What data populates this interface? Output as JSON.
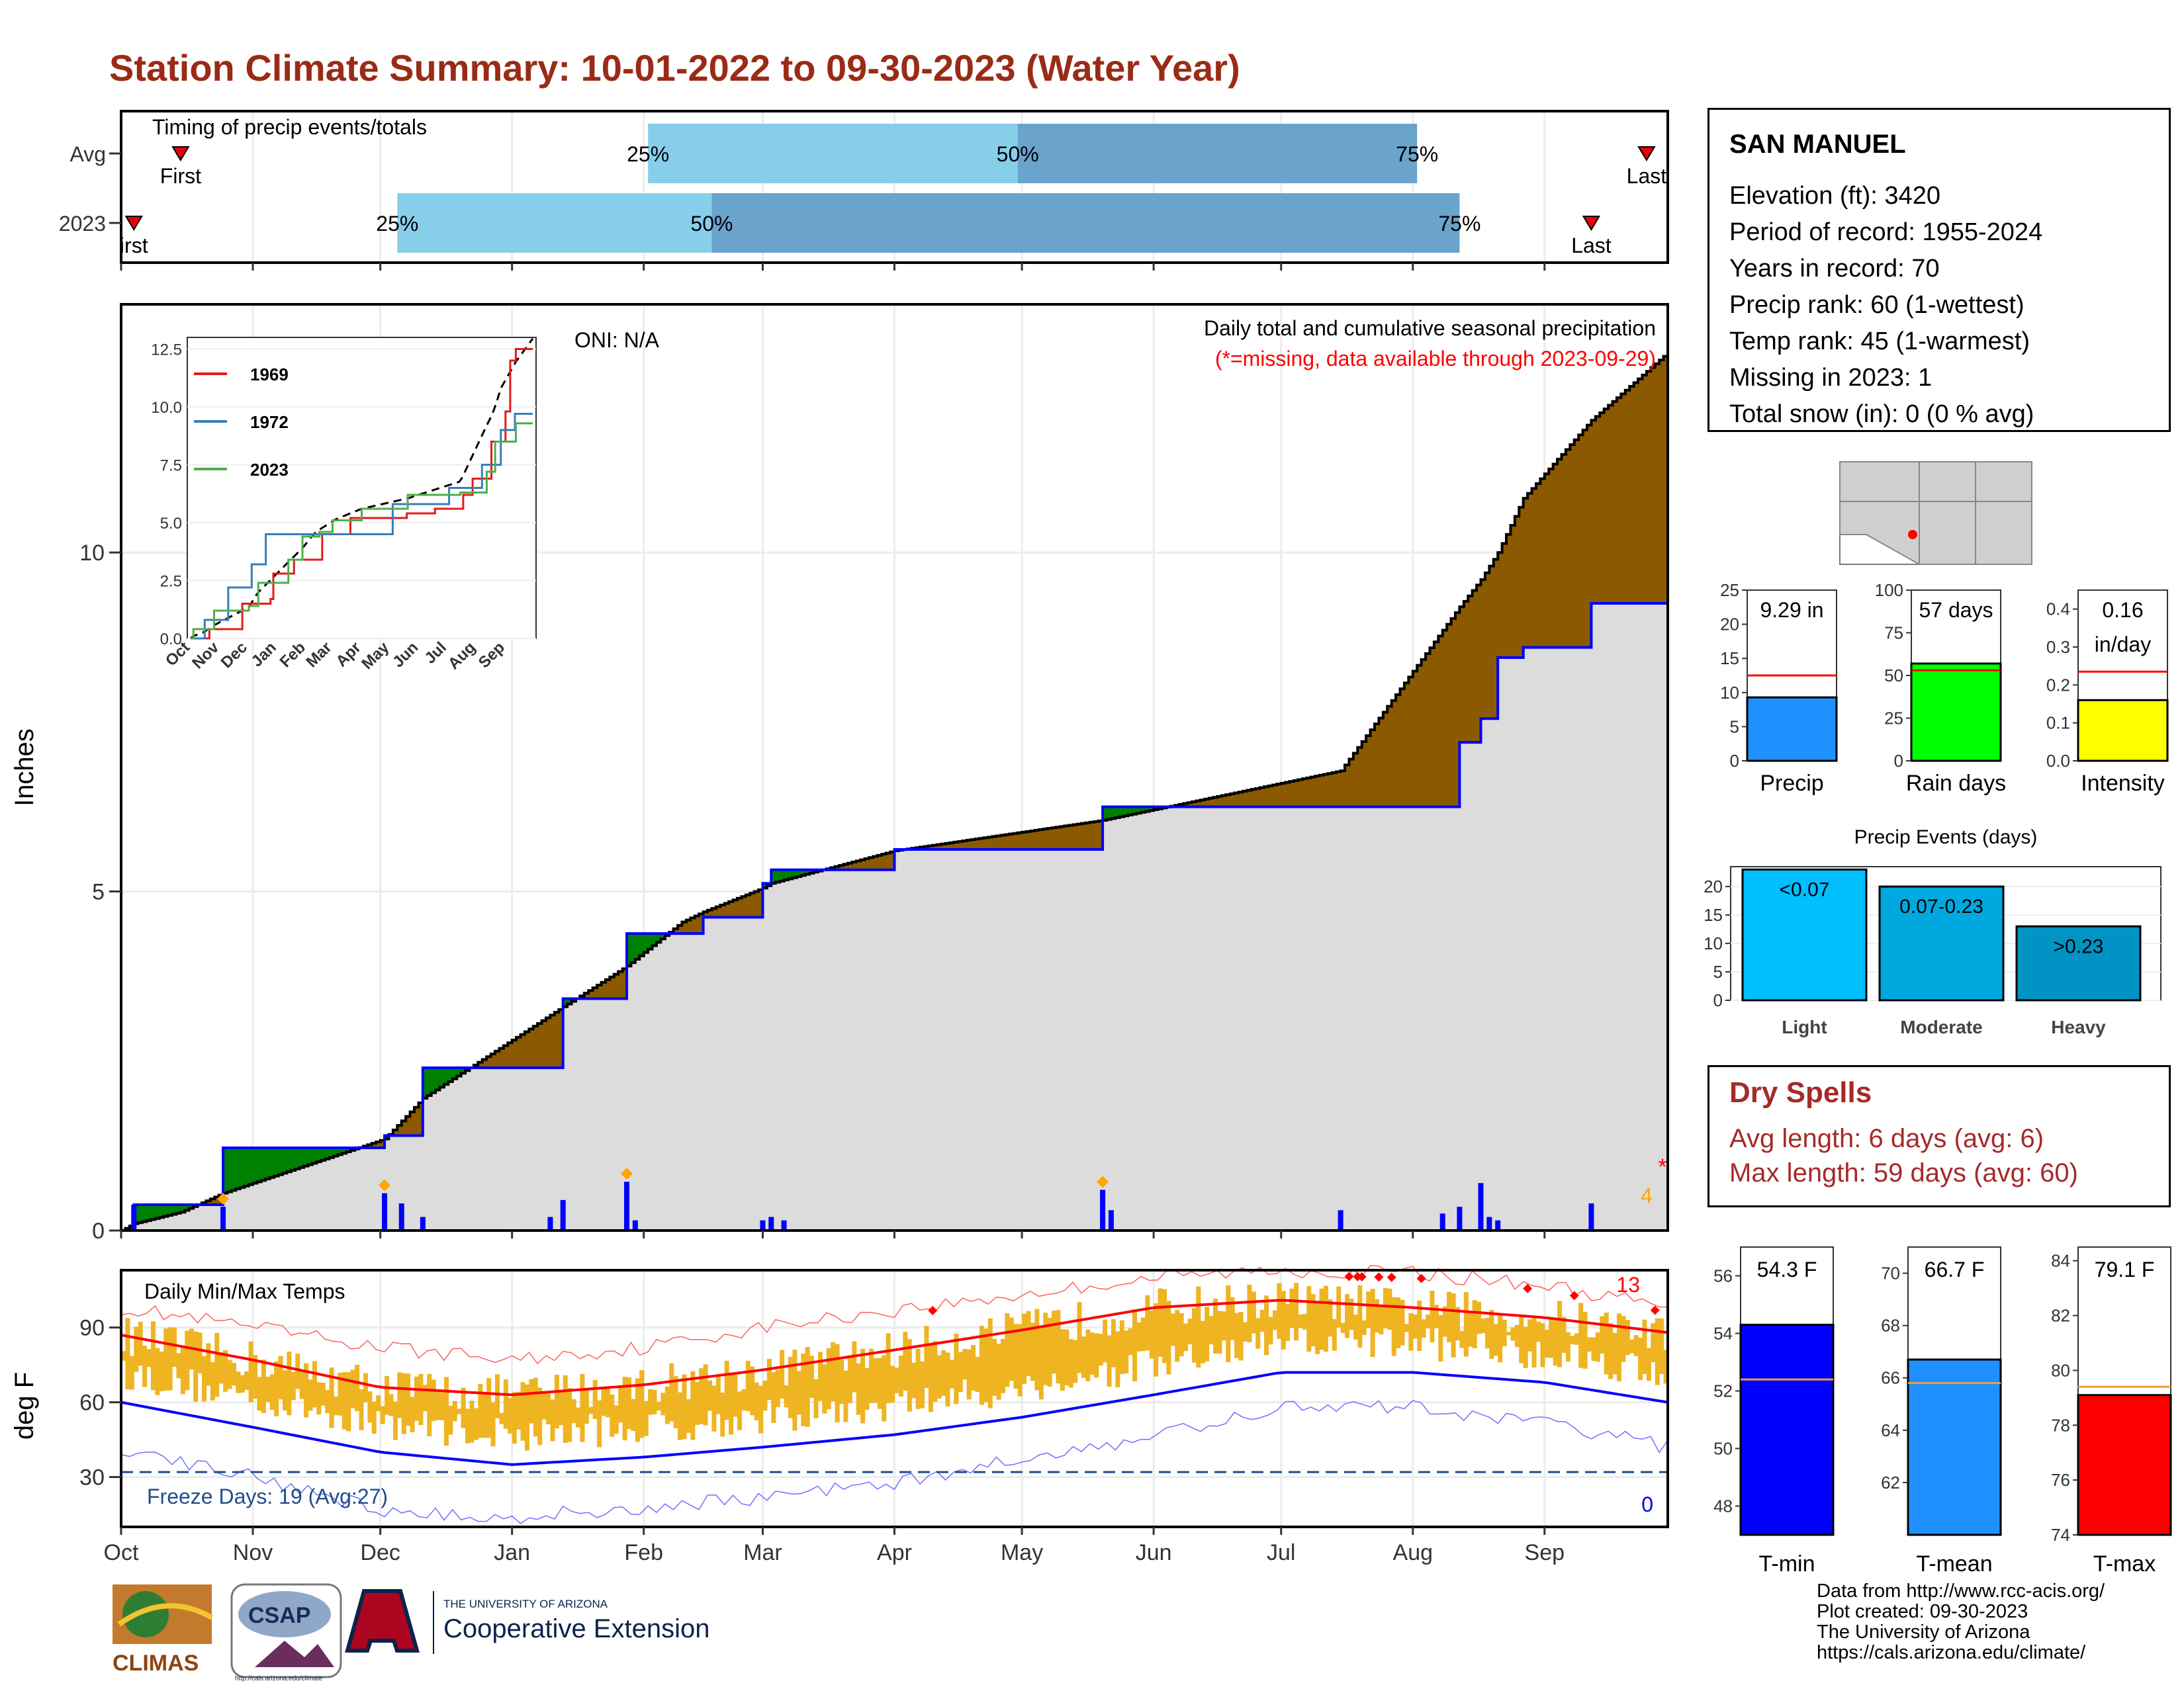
{
  "title": "Station Climate Summary: 10-01-2022 to 09-30-2023 (Water Year)",
  "months": [
    "Oct",
    "Nov",
    "Dec",
    "Jan",
    "Feb",
    "Mar",
    "Apr",
    "May",
    "Jun",
    "Jul",
    "Aug",
    "Sep"
  ],
  "timing": {
    "title": "Timing of precip events/totals",
    "rows": [
      "Avg",
      "2023"
    ],
    "first_label": "First",
    "first_label_2023": "irst",
    "last_label": "Last",
    "pct_labels": [
      "25%",
      "50%",
      "75%"
    ],
    "colors": {
      "light": "#87ceeb",
      "dark": "#6aa3cc",
      "marker": "#e8000b"
    }
  },
  "precip": {
    "ylabel": "Inches",
    "yticks": [
      "0",
      "5",
      "10"
    ],
    "oni_label": "ONI: N/A",
    "caption": "Daily total and cumulative seasonal precipitation",
    "missing_note": "(*=missing, data available through 2023-09-29)",
    "missing_count": "4",
    "missing_marker": "*",
    "colors": {
      "above": "#008000",
      "below": "#8b5a00",
      "area": "#dcdcdc",
      "current": "#0000ff",
      "marker": "#ffa500"
    }
  },
  "inset": {
    "yticks": [
      "0.0",
      "2.5",
      "5.0",
      "7.5",
      "10.0",
      "12.5"
    ],
    "xticks": [
      "Oct",
      "Nov",
      "Dec",
      "Jan",
      "Feb",
      "Mar",
      "Apr",
      "May",
      "Jun",
      "Jul",
      "Aug",
      "Sep"
    ],
    "legend": [
      {
        "name": "1969",
        "color": "#e41a1c"
      },
      {
        "name": "1972",
        "color": "#377eb8"
      },
      {
        "name": "2023",
        "color": "#4daf4a"
      }
    ]
  },
  "station": {
    "name": "SAN MANUEL",
    "elevation": "Elevation (ft): 3420",
    "period": "Period of record: 1955-2024",
    "years": "Years in record: 70",
    "precip_rank": "Precip rank: 60 (1-wettest)",
    "temp_rank": "Temp rank: 45 (1-warmest)",
    "missing": "Missing in 2023: 1",
    "snow": "Total snow (in): 0 (0 % avg)"
  },
  "mini_bars": [
    {
      "label": "Precip",
      "value_text": "9.29 in",
      "value_text2": "",
      "value": 9.29,
      "avg": 12.5,
      "ymax": 25,
      "yticks": [
        "0",
        "5",
        "10",
        "15",
        "20",
        "25"
      ],
      "color": "#1e90ff"
    },
    {
      "label": "Rain days",
      "value_text": "57 days",
      "value_text2": "",
      "value": 57,
      "avg": 53,
      "ymax": 100,
      "yticks": [
        "0",
        "25",
        "50",
        "75",
        "100"
      ],
      "color": "#00ff00"
    },
    {
      "label": "Intensity",
      "value_text": "0.16",
      "value_text2": "in/day",
      "value": 0.16,
      "avg": 0.235,
      "ymax": 0.45,
      "yticks": [
        "0.0",
        "0.1",
        "0.2",
        "0.3",
        "0.4"
      ],
      "color": "#ffff00"
    }
  ],
  "events": {
    "title": "Precip Events (days)",
    "yticks": [
      "0",
      "5",
      "10",
      "15",
      "20"
    ],
    "bars": [
      {
        "label": "Light",
        "text": "<0.07",
        "value": 23,
        "color": "#00bfff"
      },
      {
        "label": "Moderate",
        "text": "0.07-0.23",
        "value": 20,
        "color": "#00a8e0"
      },
      {
        "label": "Heavy",
        "text": ">0.23",
        "value": 13,
        "color": "#0093c4"
      }
    ]
  },
  "dry_spells": {
    "title": "Dry Spells",
    "avg": "Avg length: 6 days (avg: 6)",
    "max": "Max length: 59 days (avg: 60)"
  },
  "temps": {
    "ylabel": "deg F",
    "title": "Daily Min/Max Temps",
    "yticks": [
      "30",
      "60",
      "90"
    ],
    "freeze": "Freeze Days: 19 (Avg:27)",
    "hot_count": "13",
    "cold_count": "0",
    "colors": {
      "bars": "#eeb422",
      "max": "#ff0000",
      "min": "#0000ff"
    }
  },
  "temp_bars": [
    {
      "label": "T-min",
      "value_text": "54.3 F",
      "value": 54.3,
      "avg": 52.4,
      "ymin": 47,
      "ymax": 57,
      "yticks": [
        "48",
        "50",
        "52",
        "54",
        "56"
      ],
      "color": "#0000ff"
    },
    {
      "label": "T-mean",
      "value_text": "66.7 F",
      "value": 66.7,
      "avg": 65.8,
      "ymin": 60,
      "ymax": 71,
      "yticks": [
        "62",
        "64",
        "66",
        "68",
        "70"
      ],
      "color": "#1e90ff"
    },
    {
      "label": "T-max",
      "value_text": "79.1 F",
      "value": 79.1,
      "avg": 79.4,
      "ymin": 74,
      "ymax": 84.5,
      "yticks": [
        "74",
        "76",
        "78",
        "80",
        "82",
        "84"
      ],
      "color": "#ff0000"
    }
  ],
  "credits": [
    "Data from http://www.rcc-acis.org/",
    "Plot created: 09-30-2023",
    "The University of Arizona",
    "https://cals.arizona.edu/climate/"
  ],
  "logos": {
    "climas": "CLIMAS",
    "csap": "CSAP",
    "csap_url": "http://cals.arizona.edu/climate",
    "ua_small": "THE UNIVERSITY OF ARIZONA",
    "ua_big": "Cooperative Extension"
  },
  "chart_data": [
    {
      "type": "bar",
      "title": "Timing of precip events/totals",
      "categories": [
        "Avg",
        "2023"
      ],
      "series": [
        {
          "name": "25%",
          "values": [
            "2023-02-02",
            "2022-12-05"
          ]
        },
        {
          "name": "50%",
          "values": [
            "2023-04-30",
            "2023-02-17"
          ]
        },
        {
          "name": "75%",
          "values": [
            "2023-08-02",
            "2023-08-12"
          ]
        }
      ]
    },
    {
      "type": "area",
      "title": "Daily total and cumulative seasonal precipitation",
      "ylabel": "Inches",
      "ylim": [
        0,
        13
      ],
      "x": [
        "2022-10-01",
        "2022-10-04",
        "2022-10-15",
        "2022-10-25",
        "2022-12-02",
        "2022-12-11",
        "2023-01-13",
        "2023-01-28",
        "2023-02-10",
        "2023-02-15",
        "2023-03-01",
        "2023-03-03",
        "2023-04-01",
        "2023-05-20",
        "2023-07-15",
        "2023-08-12",
        "2023-08-17",
        "2023-08-21",
        "2023-08-27",
        "2023-09-12",
        "2023-09-30"
      ],
      "series": [
        {
          "name": "2023 cumulative",
          "values": [
            0,
            0.38,
            0.38,
            1.22,
            1.4,
            2.4,
            3.42,
            4.38,
            4.38,
            4.62,
            5.12,
            5.32,
            5.62,
            6.25,
            6.25,
            7.2,
            7.55,
            8.45,
            8.6,
            9.25,
            9.29
          ]
        },
        {
          "name": "Average cumulative",
          "values": [
            0,
            0.1,
            0.27,
            0.55,
            1.35,
            1.95,
            3.3,
            3.9,
            4.55,
            4.7,
            5.05,
            5.12,
            5.6,
            6.05,
            6.78,
            9.2,
            9.6,
            10.0,
            10.8,
            11.95,
            12.95
          ]
        }
      ]
    },
    {
      "type": "bar",
      "title": "Daily precipitation",
      "ylabel": "Inches",
      "x": [
        "2022-10-04",
        "2022-10-25",
        "2022-12-02",
        "2022-12-06",
        "2022-12-11",
        "2023-01-10",
        "2023-01-13",
        "2023-01-28",
        "2023-01-30",
        "2023-03-01",
        "2023-03-03",
        "2023-03-06",
        "2023-05-20",
        "2023-05-22",
        "2023-07-15",
        "2023-08-08",
        "2023-08-12",
        "2023-08-17",
        "2023-08-19",
        "2023-08-21",
        "2023-09-12"
      ],
      "values": [
        0.38,
        0.35,
        0.55,
        0.4,
        0.2,
        0.2,
        0.45,
        0.72,
        0.15,
        0.15,
        0.2,
        0.15,
        0.6,
        0.3,
        0.3,
        0.25,
        0.35,
        0.7,
        0.2,
        0.15,
        0.4
      ]
    },
    {
      "type": "line",
      "title": "Daily Min/Max Temps",
      "ylabel": "deg F",
      "ylim": [
        10,
        110
      ],
      "x": [
        "2022-10-01",
        "2022-11-01",
        "2022-12-01",
        "2023-01-01",
        "2023-02-01",
        "2023-03-01",
        "2023-04-01",
        "2023-05-01",
        "2023-06-01",
        "2023-07-01",
        "2023-08-01",
        "2023-09-01",
        "2023-09-30"
      ],
      "series": [
        {
          "name": "Avg max",
          "values": [
            87,
            77,
            66,
            63,
            67,
            73,
            81,
            89,
            98,
            101,
            98,
            94,
            88
          ]
        },
        {
          "name": "Avg min",
          "values": [
            60,
            50,
            40,
            35,
            38,
            42,
            47,
            54,
            63,
            72,
            72,
            68,
            60
          ]
        },
        {
          "name": "Record max",
          "values": [
            98,
            90,
            82,
            77,
            82,
            90,
            97,
            103,
            110,
            113,
            112,
            107,
            98
          ]
        },
        {
          "name": "Record min",
          "values": [
            42,
            30,
            17,
            14,
            18,
            22,
            28,
            37,
            46,
            58,
            58,
            52,
            42
          ]
        }
      ]
    },
    {
      "type": "bar",
      "title": "Precip Events (days)",
      "categories": [
        "Light",
        "Moderate",
        "Heavy"
      ],
      "values": [
        23,
        20,
        13
      ],
      "ylim": [
        0,
        23
      ]
    },
    {
      "type": "bar",
      "categories": [
        "Precip",
        "Rain days",
        "Intensity"
      ],
      "values": [
        9.29,
        57,
        0.16
      ]
    },
    {
      "type": "bar",
      "categories": [
        "T-min",
        "T-mean",
        "T-max"
      ],
      "values": [
        54.3,
        66.7,
        79.1
      ]
    }
  ]
}
